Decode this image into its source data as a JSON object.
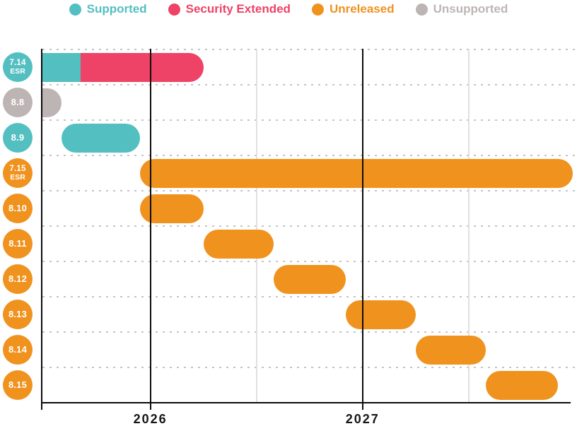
{
  "chart_data": {
    "type": "gantt",
    "title": "",
    "legend_position": "top-center",
    "legend": [
      {
        "key": "supported",
        "label": "Supported",
        "color": "#54BFC1"
      },
      {
        "key": "security_extended",
        "label": "Security Extended",
        "color": "#EE4266"
      },
      {
        "key": "unreleased",
        "label": "Unreleased",
        "color": "#F0921E"
      },
      {
        "key": "unsupported",
        "label": "Unsupported",
        "color": "#BDB5B4"
      }
    ],
    "axis": {
      "x_min": 2025.49,
      "x_max": 2028.01,
      "year_ticks": [
        {
          "value": 2026,
          "label": "2026"
        },
        {
          "value": 2027,
          "label": "2027"
        }
      ],
      "minor_ticks": [
        2026.5,
        2027.5
      ],
      "grid": "dotted horizontal row separators; solid black year lines; light gray mid-year lines"
    },
    "rows": [
      {
        "version": "7.14",
        "tag": "ESR",
        "badge_status": "supported",
        "segments": [
          {
            "status": "supported",
            "start": 2025.49,
            "end": 2025.67,
            "round_left": false,
            "round_right": false
          },
          {
            "status": "security_extended",
            "start": 2025.67,
            "end": 2026.25,
            "round_left": false,
            "round_right": true
          }
        ]
      },
      {
        "version": "8.8",
        "tag": "",
        "badge_status": "unsupported",
        "segments": [
          {
            "status": "unsupported",
            "start": 2025.49,
            "end": 2025.58,
            "round_left": false,
            "round_right": true
          }
        ]
      },
      {
        "version": "8.9",
        "tag": "",
        "badge_status": "supported",
        "segments": [
          {
            "status": "supported",
            "start": 2025.58,
            "end": 2025.95,
            "round_left": true,
            "round_right": true
          }
        ]
      },
      {
        "version": "7.15",
        "tag": "ESR",
        "badge_status": "unreleased",
        "segments": [
          {
            "status": "unreleased",
            "start": 2025.95,
            "end": 2027.99,
            "round_left": true,
            "round_right": true
          }
        ]
      },
      {
        "version": "8.10",
        "tag": "",
        "badge_status": "unreleased",
        "segments": [
          {
            "status": "unreleased",
            "start": 2025.95,
            "end": 2026.25,
            "round_left": true,
            "round_right": true
          }
        ]
      },
      {
        "version": "8.11",
        "tag": "",
        "badge_status": "unreleased",
        "segments": [
          {
            "status": "unreleased",
            "start": 2026.25,
            "end": 2026.58,
            "round_left": true,
            "round_right": true
          }
        ]
      },
      {
        "version": "8.12",
        "tag": "",
        "badge_status": "unreleased",
        "segments": [
          {
            "status": "unreleased",
            "start": 2026.58,
            "end": 2026.92,
            "round_left": true,
            "round_right": true
          }
        ]
      },
      {
        "version": "8.13",
        "tag": "",
        "badge_status": "unreleased",
        "segments": [
          {
            "status": "unreleased",
            "start": 2026.92,
            "end": 2027.25,
            "round_left": true,
            "round_right": true
          }
        ]
      },
      {
        "version": "8.14",
        "tag": "",
        "badge_status": "unreleased",
        "segments": [
          {
            "status": "unreleased",
            "start": 2027.25,
            "end": 2027.58,
            "round_left": true,
            "round_right": true
          }
        ]
      },
      {
        "version": "8.15",
        "tag": "",
        "badge_status": "unreleased",
        "segments": [
          {
            "status": "unreleased",
            "start": 2027.58,
            "end": 2027.92,
            "round_left": true,
            "round_right": true
          }
        ]
      }
    ]
  }
}
